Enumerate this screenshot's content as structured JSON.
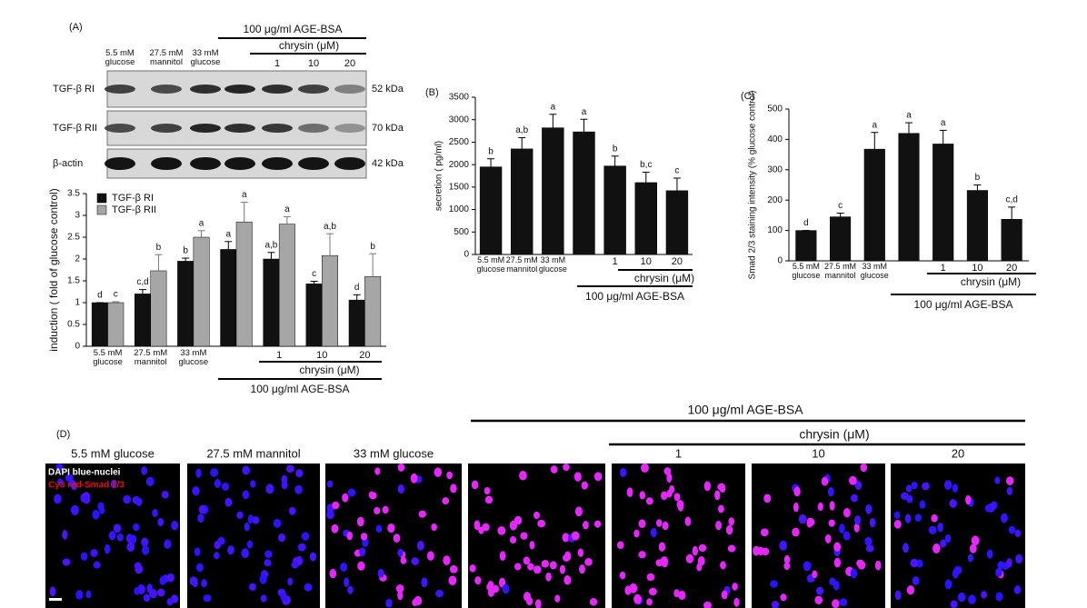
{
  "panel_labels": [
    "(A)",
    "(B)",
    "(C)",
    "(D)"
  ],
  "blot": {
    "treatment": "100 μg/ml AGE-BSA",
    "chrysin": "chrysin (μM)",
    "lanes": [
      "5.5 mM glucose",
      "27.5 mM mannitol",
      "33 mM glucose",
      null,
      "1",
      "10",
      "20"
    ],
    "rows": [
      {
        "label": "TGF-β RI",
        "size": "52 kDa"
      },
      {
        "label": "TGF-β RII",
        "size": "70 kDa"
      },
      {
        "label": "β-actin",
        "size": "42 kDa"
      }
    ]
  },
  "chart_data": [
    {
      "type": "grouped-bar",
      "ylabel": "induction ( fold of glucose control)",
      "categories": [
        "5.5 mM glucose",
        "27.5 mM mannitol",
        "33 mM glucose",
        null,
        "1",
        "10",
        "20"
      ],
      "series": [
        {
          "name": "TGF-β RI",
          "color": "#111111",
          "values": [
            1,
            1.2,
            1.95,
            2.22,
            2.0,
            1.43,
            1.06
          ],
          "errors": [
            0,
            0.1,
            0.07,
            0.18,
            0.15,
            0.06,
            0.12
          ],
          "labels": [
            "d",
            "c,d",
            "b",
            "a",
            "a,b",
            "c",
            "d"
          ]
        },
        {
          "name": "TGF-β RII",
          "color": "#a6a6a6",
          "values": [
            1.0,
            1.73,
            2.5,
            2.85,
            2.8,
            2.08,
            1.6
          ],
          "errors": [
            0.02,
            0.37,
            0.15,
            0.45,
            0.17,
            0.5,
            0.52
          ],
          "labels": [
            "c",
            "b",
            "a",
            "a",
            "a",
            "a,b",
            "b"
          ]
        }
      ],
      "ylim": [
        0,
        3.5
      ],
      "yticks": [
        0,
        0.5,
        1,
        1.5,
        2,
        2.5,
        3,
        3.5
      ],
      "legend": "upper left",
      "annotations": {
        "chrysin": "chrysin (μM)",
        "treatment": "100 μg/ml AGE-BSA"
      }
    },
    {
      "type": "bar",
      "ylabel": "secretion ( pg/ml)",
      "categories": [
        "5.5 mM glucose",
        "27.5 mM mannitol",
        "33 mM glucose",
        null,
        "1",
        "10",
        "20"
      ],
      "values": [
        1950,
        2350,
        2820,
        2730,
        1970,
        1600,
        1420
      ],
      "errors": [
        180,
        250,
        300,
        280,
        220,
        230,
        280
      ],
      "labels": [
        "b",
        "a,b",
        "a",
        "a",
        "b",
        "b,c",
        "c"
      ],
      "color": "#111111",
      "ylim": [
        0,
        3500
      ],
      "yticks": [
        0,
        500,
        1000,
        1500,
        2000,
        2500,
        3000,
        3500
      ],
      "annotations": {
        "chrysin": "chrysin (μM)",
        "treatment": "100 μg/ml AGE-BSA"
      }
    },
    {
      "type": "bar",
      "ylabel": "Smad 2/3 staining intensity (% glucose control)",
      "categories": [
        "5.5 mM glucose",
        "27.5 mM mannitol",
        "33 mM glucose",
        null,
        "1",
        "10",
        "20"
      ],
      "values": [
        100,
        145,
        368,
        420,
        385,
        232,
        137
      ],
      "errors": [
        0,
        12,
        55,
        35,
        45,
        18,
        40
      ],
      "labels": [
        "d",
        "c",
        "a",
        "a",
        "a",
        "b",
        "c,d"
      ],
      "color": "#111111",
      "ylim": [
        0,
        500
      ],
      "yticks": [
        0,
        100,
        200,
        300,
        400,
        500
      ],
      "annotations": {
        "chrysin": "chrysin (μM)",
        "treatment": "100 μg/ml AGE-BSA"
      }
    }
  ],
  "micrographs": {
    "treatment": "100 μg/ml AGE-BSA",
    "chrysin": "chrysin (μM)",
    "panels": [
      "5.5 mM glucose",
      "27.5 mM mannitol",
      "33 mM glucose",
      null,
      "1",
      "10",
      "20"
    ],
    "legend": [
      "DAPI blue-nuclei",
      "Cy3 red-Smad 2/3"
    ]
  }
}
